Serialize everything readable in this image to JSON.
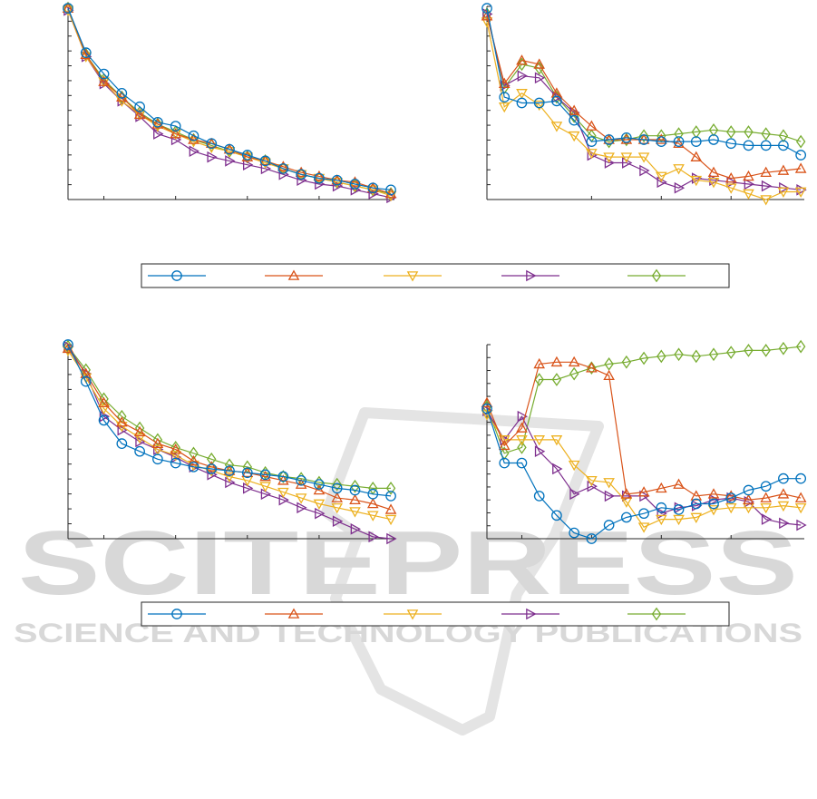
{
  "watermark": {
    "word": "SCITEPRESS",
    "tagline": "SCIENCE AND TECHNOLOGY PUBLICATIONS"
  },
  "series_style": [
    {
      "color": "#0072BD",
      "marker": "circle"
    },
    {
      "color": "#D95319",
      "marker": "triangle-up"
    },
    {
      "color": "#EDB120",
      "marker": "triangle-down"
    },
    {
      "color": "#7E2F8E",
      "marker": "triangle-right"
    },
    {
      "color": "#77AC30",
      "marker": "diamond"
    }
  ],
  "chart_data": [
    {
      "type": "line",
      "grid": false,
      "x": [
        1,
        2,
        3,
        4,
        5,
        6,
        7,
        8,
        9,
        10,
        11,
        12,
        13,
        14,
        15,
        16,
        17,
        18,
        19
      ],
      "xlim": [
        1,
        19.2
      ],
      "ylim": [
        0,
        100
      ],
      "series": [
        {
          "values": [
            99,
            76,
            65,
            55,
            48,
            40,
            38,
            33,
            29,
            26,
            23,
            20,
            16,
            13,
            11,
            10,
            8,
            6,
            5
          ]
        },
        {
          "values": [
            99,
            75,
            61,
            53,
            44,
            39,
            34,
            31,
            29,
            26,
            22,
            20,
            17,
            14,
            12,
            10,
            9,
            6,
            3
          ]
        },
        {
          "values": [
            98,
            74,
            61,
            51,
            44,
            38,
            34,
            30,
            27,
            25,
            22,
            19,
            16,
            13,
            11,
            9,
            7,
            5,
            2
          ]
        },
        {
          "values": [
            98,
            74,
            60,
            51,
            43,
            34,
            31,
            25,
            22,
            20,
            18,
            16,
            13,
            10,
            8,
            7,
            5,
            3,
            1
          ]
        },
        {
          "values": [
            99,
            75,
            62,
            53,
            45,
            39,
            35,
            31,
            28,
            25,
            22,
            20,
            16,
            13,
            11,
            9,
            7,
            5,
            3
          ]
        }
      ]
    },
    {
      "type": "line",
      "grid": false,
      "x": [
        1,
        2,
        3,
        4,
        5,
        6,
        7,
        8,
        9,
        10,
        11,
        12,
        13,
        14,
        15,
        16,
        17,
        18,
        19
      ],
      "xlim": [
        1,
        19.2
      ],
      "ylim": [
        0,
        100
      ],
      "series": [
        {
          "values": [
            99,
            53,
            50,
            50,
            51,
            41,
            30,
            31,
            32,
            31,
            30,
            30,
            30,
            31,
            29,
            28,
            28,
            28,
            23
          ]
        },
        {
          "values": [
            95,
            60,
            72,
            70,
            55,
            46,
            38,
            31,
            31,
            31,
            31,
            29,
            22,
            14,
            11,
            12,
            14,
            15,
            16
          ]
        },
        {
          "values": [
            92,
            48,
            55,
            49,
            38,
            33,
            24,
            22,
            22,
            22,
            12,
            16,
            10,
            9,
            6,
            3,
            0,
            4,
            4
          ]
        },
        {
          "values": [
            96,
            59,
            64,
            63,
            53,
            45,
            23,
            19,
            19,
            15,
            9,
            6,
            11,
            10,
            9,
            8,
            7,
            6,
            5
          ]
        },
        {
          "values": [
            96,
            58,
            70,
            68,
            53,
            43,
            33,
            30,
            31,
            33,
            33,
            34,
            35,
            36,
            35,
            35,
            34,
            33,
            30
          ]
        }
      ]
    },
    {
      "type": "line",
      "grid": false,
      "x": [
        1,
        2,
        3,
        4,
        5,
        6,
        7,
        8,
        9,
        10,
        11,
        12,
        13,
        14,
        15,
        16,
        17,
        18,
        19
      ],
      "xlim": [
        1,
        19.2
      ],
      "ylim": [
        0,
        100
      ],
      "series": [
        {
          "values": [
            100,
            81,
            61,
            49,
            45,
            41,
            39,
            37,
            36,
            35,
            34,
            33,
            32,
            30,
            28,
            26,
            25,
            23,
            22
          ]
        },
        {
          "values": [
            98,
            85,
            70,
            60,
            55,
            49,
            46,
            40,
            37,
            35,
            34,
            32,
            30,
            28,
            25,
            21,
            20,
            18,
            15
          ]
        },
        {
          "values": [
            97,
            83,
            67,
            58,
            52,
            46,
            43,
            38,
            35,
            32,
            30,
            27,
            24,
            21,
            18,
            16,
            14,
            12,
            10
          ]
        },
        {
          "values": [
            99,
            85,
            63,
            56,
            50,
            46,
            42,
            37,
            33,
            29,
            26,
            23,
            20,
            16,
            13,
            9,
            5,
            1,
            0
          ]
        },
        {
          "values": [
            99,
            87,
            72,
            63,
            57,
            51,
            47,
            44,
            41,
            38,
            37,
            34,
            32,
            31,
            29,
            28,
            27,
            26,
            26
          ]
        }
      ]
    },
    {
      "type": "line",
      "grid": false,
      "x": [
        1,
        2,
        3,
        4,
        5,
        6,
        7,
        8,
        9,
        10,
        11,
        12,
        13,
        14,
        15,
        16,
        17,
        18,
        19
      ],
      "xlim": [
        1,
        19.2
      ],
      "ylim": [
        0,
        100
      ],
      "series": [
        {
          "values": [
            67,
            39,
            39,
            22,
            12,
            3,
            0,
            7,
            11,
            13,
            16,
            15,
            18,
            18,
            21,
            25,
            27,
            31,
            31
          ]
        },
        {
          "values": [
            70,
            48,
            57,
            90,
            91,
            91,
            88,
            84,
            23,
            24,
            26,
            28,
            22,
            23,
            22,
            20,
            21,
            23,
            21
          ]
        },
        {
          "values": [
            64,
            51,
            51,
            51,
            51,
            38,
            30,
            29,
            19,
            6,
            10,
            10,
            11,
            15,
            16,
            16,
            16,
            17,
            16
          ]
        },
        {
          "values": [
            66,
            51,
            63,
            45,
            36,
            23,
            27,
            22,
            22,
            22,
            13,
            16,
            17,
            20,
            21,
            19,
            10,
            8,
            7
          ]
        },
        {
          "values": [
            68,
            44,
            47,
            82,
            82,
            85,
            88,
            90,
            91,
            93,
            94,
            95,
            94,
            95,
            96,
            97,
            97,
            98,
            99
          ]
        }
      ]
    }
  ]
}
